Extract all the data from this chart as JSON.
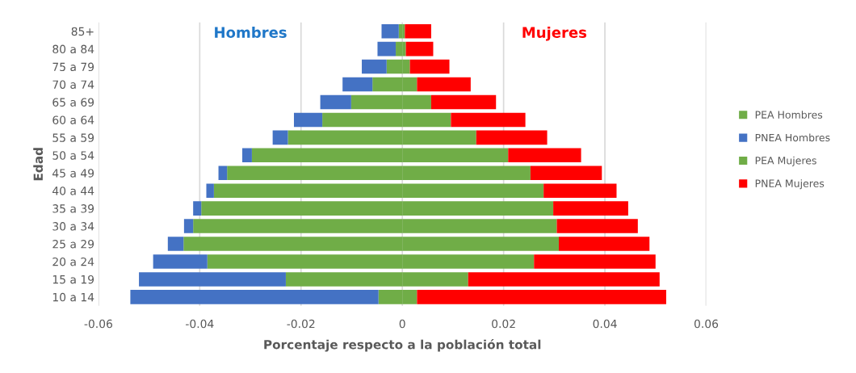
{
  "chart_data": {
    "type": "bar",
    "orientation": "horizontal",
    "stacked": true,
    "xlabel": "Porcentaje respecto a la población total",
    "ylabel": "Edad",
    "categories": [
      "85+",
      "80 a 84",
      "75 a 79",
      "70 a 74",
      "65 a 69",
      "60 a 64",
      "55 a 59",
      "50 a 54",
      "45 a 49",
      "40 a 44",
      "35 a 39",
      "30 a 34",
      "25 a 29",
      "20 a 24",
      "15 a 19",
      "10 a 14"
    ],
    "series": [
      {
        "name": "PEA Hombres",
        "color": "#70ad47",
        "values": [
          -0.0007,
          -0.0013,
          -0.0031,
          -0.0059,
          -0.0101,
          -0.0158,
          -0.0226,
          -0.0297,
          -0.0346,
          -0.0372,
          -0.0397,
          -0.0413,
          -0.0432,
          -0.0385,
          -0.023,
          -0.0047
        ]
      },
      {
        "name": "PNEA Hombres",
        "color": "#4472c4",
        "values": [
          -0.0034,
          -0.0036,
          -0.0049,
          -0.0059,
          -0.0061,
          -0.0056,
          -0.003,
          -0.0019,
          -0.0017,
          -0.0015,
          -0.0016,
          -0.0018,
          -0.0031,
          -0.0107,
          -0.029,
          -0.049
        ]
      },
      {
        "name": "PEA Mujeres",
        "color": "#70ad47",
        "values": [
          0.0005,
          0.0007,
          0.0015,
          0.0029,
          0.0057,
          0.0096,
          0.0146,
          0.0209,
          0.0253,
          0.0279,
          0.0298,
          0.0305,
          0.0309,
          0.026,
          0.013,
          0.0029
        ]
      },
      {
        "name": "PNEA Mujeres",
        "color": "#ff0000",
        "values": [
          0.0052,
          0.0054,
          0.0078,
          0.0106,
          0.0128,
          0.0147,
          0.014,
          0.0144,
          0.0141,
          0.0144,
          0.0148,
          0.016,
          0.0179,
          0.024,
          0.0378,
          0.0492
        ]
      }
    ],
    "xlim": [
      -0.06,
      0.06
    ],
    "xticks": [
      -0.06,
      -0.04,
      -0.02,
      0,
      0.02,
      0.04,
      0.06
    ],
    "annotations": [
      "Hombres",
      "Mujeres"
    ],
    "grid": "x",
    "legend": "right"
  }
}
